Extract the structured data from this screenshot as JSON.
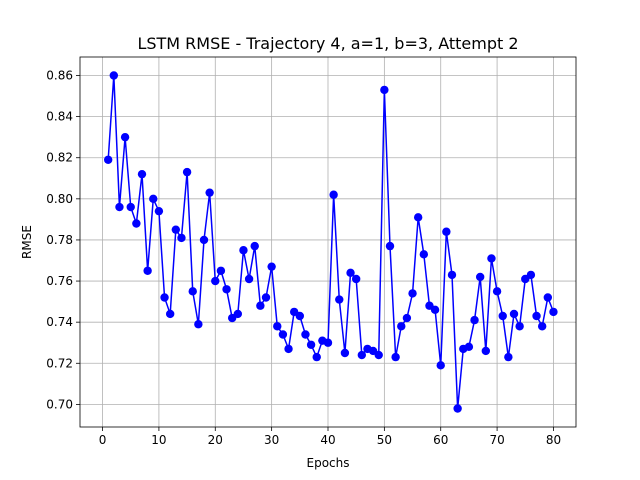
{
  "chart_data": {
    "type": "line",
    "title": "LSTM RMSE - Trajectory 4, a=1, b=3, Attempt 2",
    "xlabel": "Epochs",
    "ylabel": "RMSE",
    "xlim": [
      -4,
      84
    ],
    "ylim": [
      0.689,
      0.869
    ],
    "xticks": [
      0,
      10,
      20,
      30,
      40,
      50,
      60,
      70,
      80
    ],
    "yticks": [
      0.7,
      0.72,
      0.74,
      0.76,
      0.78,
      0.8,
      0.82,
      0.84,
      0.86
    ],
    "xtick_labels": [
      "0",
      "10",
      "20",
      "30",
      "40",
      "50",
      "60",
      "70",
      "80"
    ],
    "ytick_labels": [
      "0.70",
      "0.72",
      "0.74",
      "0.76",
      "0.78",
      "0.80",
      "0.82",
      "0.84",
      "0.86"
    ],
    "grid": true,
    "color": "#0000ff",
    "marker": "circle",
    "x": [
      1,
      2,
      3,
      4,
      5,
      6,
      7,
      8,
      9,
      10,
      11,
      12,
      13,
      14,
      15,
      16,
      17,
      18,
      19,
      20,
      21,
      22,
      23,
      24,
      25,
      26,
      27,
      28,
      29,
      30,
      31,
      32,
      33,
      34,
      35,
      36,
      37,
      38,
      39,
      40,
      41,
      42,
      43,
      44,
      45,
      46,
      47,
      48,
      49,
      50,
      51,
      52,
      53,
      54,
      55,
      56,
      57,
      58,
      59,
      60,
      61,
      62,
      63,
      64,
      65,
      66,
      67,
      68,
      69,
      70,
      71,
      72,
      73,
      74,
      75,
      76,
      77,
      78,
      79,
      80
    ],
    "y": [
      0.819,
      0.86,
      0.796,
      0.83,
      0.796,
      0.788,
      0.812,
      0.765,
      0.8,
      0.794,
      0.752,
      0.744,
      0.785,
      0.781,
      0.813,
      0.755,
      0.739,
      0.78,
      0.803,
      0.76,
      0.765,
      0.756,
      0.742,
      0.744,
      0.775,
      0.761,
      0.777,
      0.748,
      0.752,
      0.767,
      0.738,
      0.734,
      0.727,
      0.745,
      0.743,
      0.734,
      0.729,
      0.723,
      0.731,
      0.73,
      0.802,
      0.751,
      0.725,
      0.764,
      0.761,
      0.724,
      0.727,
      0.726,
      0.724,
      0.853,
      0.777,
      0.723,
      0.738,
      0.742,
      0.754,
      0.791,
      0.773,
      0.748,
      0.746,
      0.719,
      0.784,
      0.763,
      0.698,
      0.727,
      0.728,
      0.741,
      0.762,
      0.726,
      0.771,
      0.755,
      0.743,
      0.723,
      0.744,
      0.738,
      0.761,
      0.763,
      0.743,
      0.738,
      0.752,
      0.745
    ]
  }
}
